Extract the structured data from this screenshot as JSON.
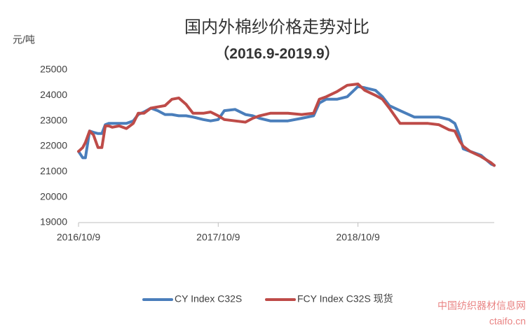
{
  "chart_data": {
    "type": "line",
    "title": "国内外棉纱价格走势对比",
    "subtitle": "（2016.9-2019.9）",
    "y_label": "元/吨",
    "x": [
      "2016/10/9",
      "2016/10/20",
      "2016/10/27",
      "2016/11/7",
      "2016/11/17",
      "2016/11/29",
      "2016/12/9",
      "2016/12/18",
      "2016/12/27",
      "2017/1/5",
      "2017/1/23",
      "2017/2/11",
      "2017/3/1",
      "2017/3/14",
      "2017/3/29",
      "2017/4/16",
      "2017/5/4",
      "2017/5/23",
      "2017/6/10",
      "2017/6/28",
      "2017/7/17",
      "2017/8/4",
      "2017/8/31",
      "2017/9/19",
      "2017/10/9",
      "2017/10/25",
      "2017/11/22",
      "2017/12/19",
      "2018/1/7",
      "2018/1/25",
      "2018/2/22",
      "2018/4/9",
      "2018/5/15",
      "2018/6/15",
      "2018/6/30",
      "2018/7/18",
      "2018/8/15",
      "2018/9/11",
      "2018/10/9",
      "2018/10/27",
      "2018/11/24",
      "2018/12/12",
      "2018/12/30",
      "2019/1/27",
      "2019/3/5",
      "2019/4/10",
      "2019/5/8",
      "2019/6/4",
      "2019/6/19",
      "2019/7/2",
      "2019/7/11",
      "2019/7/29",
      "2019/8/26",
      "2019/9/22",
      "2019/9/30"
    ],
    "series": [
      {
        "name": "CY Index C32S",
        "color": "#4a7ebb",
        "values": [
          21800,
          21550,
          21550,
          22600,
          22550,
          22500,
          22500,
          22850,
          22900,
          22900,
          22900,
          22900,
          23000,
          23250,
          23350,
          23500,
          23400,
          23250,
          23250,
          23200,
          23200,
          23150,
          23050,
          23000,
          23050,
          23400,
          23450,
          23250,
          23200,
          23100,
          23000,
          23000,
          23100,
          23200,
          23700,
          23850,
          23850,
          23950,
          24350,
          24300,
          24200,
          23950,
          23600,
          23400,
          23150,
          23150,
          23150,
          23050,
          22900,
          22400,
          21900,
          21800,
          21650,
          21300,
          21250
        ]
      },
      {
        "name": "FCY Index C32S 现货",
        "color": "#be4b48",
        "values": [
          21800,
          21950,
          22150,
          22600,
          22450,
          21950,
          21950,
          22800,
          22800,
          22750,
          22800,
          22700,
          22900,
          23300,
          23300,
          23500,
          23550,
          23600,
          23850,
          23900,
          23650,
          23300,
          23300,
          23350,
          23200,
          23050,
          23000,
          22950,
          23100,
          23200,
          23300,
          23300,
          23250,
          23300,
          23850,
          23950,
          24150,
          24400,
          24450,
          24200,
          24000,
          23850,
          23500,
          22900,
          22900,
          22900,
          22850,
          22650,
          22600,
          22200,
          22000,
          21800,
          21600,
          21350,
          21250
        ]
      }
    ],
    "xlim": [
      "2016/10/9",
      "2019/9/30"
    ],
    "xticks": [
      "2016/10/9",
      "2017/10/9",
      "2018/10/9"
    ],
    "ylim": [
      19000,
      25000
    ],
    "yticks": [
      19000,
      20000,
      21000,
      22000,
      23000,
      24000,
      25000
    ],
    "grid": false,
    "legend": "bottom",
    "watermark": [
      "中国纺织器材信息网",
      "ctaifo.cn"
    ]
  }
}
